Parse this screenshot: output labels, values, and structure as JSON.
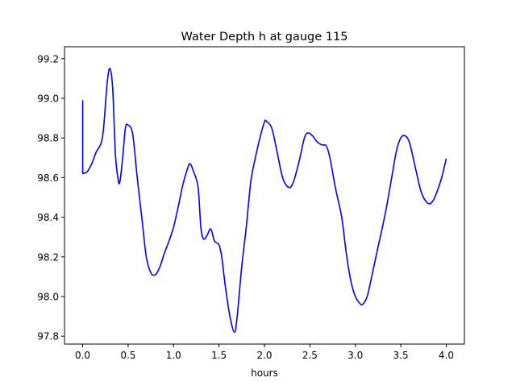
{
  "chart_data": {
    "type": "line",
    "title": "Water Depth h at gauge 115",
    "xlabel": "hours",
    "ylabel": "",
    "xlim": [
      -0.2,
      4.2
    ],
    "ylim": [
      97.76,
      99.26
    ],
    "xticks": [
      0.0,
      0.5,
      1.0,
      1.5,
      2.0,
      2.5,
      3.0,
      3.5,
      4.0
    ],
    "xtick_labels": [
      "0.0",
      "0.5",
      "1.0",
      "1.5",
      "2.0",
      "2.5",
      "3.0",
      "3.5",
      "4.0"
    ],
    "yticks": [
      97.8,
      98.0,
      98.2,
      98.4,
      98.6,
      98.8,
      99.0,
      99.2
    ],
    "ytick_labels": [
      "97.8",
      "98.0",
      "98.2",
      "98.4",
      "98.6",
      "98.8",
      "99.0",
      "99.2"
    ],
    "grid": false,
    "series": [
      {
        "name": "h",
        "color": "#0000ff",
        "x": [
          0,
          0,
          0.05,
          0.1,
          0.15,
          0.2,
          0.23,
          0.27,
          0.3,
          0.33,
          0.36,
          0.39,
          0.41,
          0.44,
          0.47,
          0.5,
          0.55,
          0.6,
          0.65,
          0.7,
          0.75,
          0.8,
          0.85,
          0.9,
          0.95,
          1.0,
          1.05,
          1.1,
          1.15,
          1.18,
          1.22,
          1.27,
          1.3,
          1.33,
          1.37,
          1.4,
          1.42,
          1.45,
          1.5,
          1.53,
          1.57,
          1.62,
          1.67,
          1.7,
          1.75,
          1.8,
          1.85,
          1.9,
          1.95,
          2.0,
          2.02,
          2.08,
          2.13,
          2.2,
          2.27,
          2.32,
          2.38,
          2.44,
          2.48,
          2.53,
          2.58,
          2.63,
          2.68,
          2.72,
          2.78,
          2.85,
          2.9,
          2.95,
          3.0,
          3.05,
          3.08,
          3.13,
          3.18,
          3.25,
          3.33,
          3.4,
          3.45,
          3.5,
          3.55,
          3.6,
          3.67,
          3.73,
          3.8,
          3.85,
          3.9,
          3.95,
          4.0
        ],
        "y": [
          98.99,
          98.62,
          98.63,
          98.67,
          98.73,
          98.77,
          98.85,
          99.08,
          99.15,
          99.05,
          98.72,
          98.59,
          98.58,
          98.7,
          98.85,
          98.865,
          98.82,
          98.6,
          98.4,
          98.2,
          98.12,
          98.11,
          98.15,
          98.22,
          98.28,
          98.35,
          98.45,
          98.56,
          98.64,
          98.67,
          98.63,
          98.55,
          98.35,
          98.29,
          98.31,
          98.34,
          98.33,
          98.28,
          98.26,
          98.2,
          98.05,
          97.9,
          97.82,
          97.9,
          98.15,
          98.35,
          98.58,
          98.7,
          98.8,
          98.88,
          98.885,
          98.85,
          98.75,
          98.6,
          98.55,
          98.58,
          98.68,
          98.8,
          98.825,
          98.81,
          98.78,
          98.765,
          98.76,
          98.7,
          98.55,
          98.4,
          98.22,
          98.08,
          98.0,
          97.965,
          97.96,
          98.0,
          98.1,
          98.25,
          98.42,
          98.6,
          98.73,
          98.8,
          98.81,
          98.77,
          98.63,
          98.52,
          98.47,
          98.48,
          98.53,
          98.6,
          98.695
        ]
      }
    ]
  }
}
